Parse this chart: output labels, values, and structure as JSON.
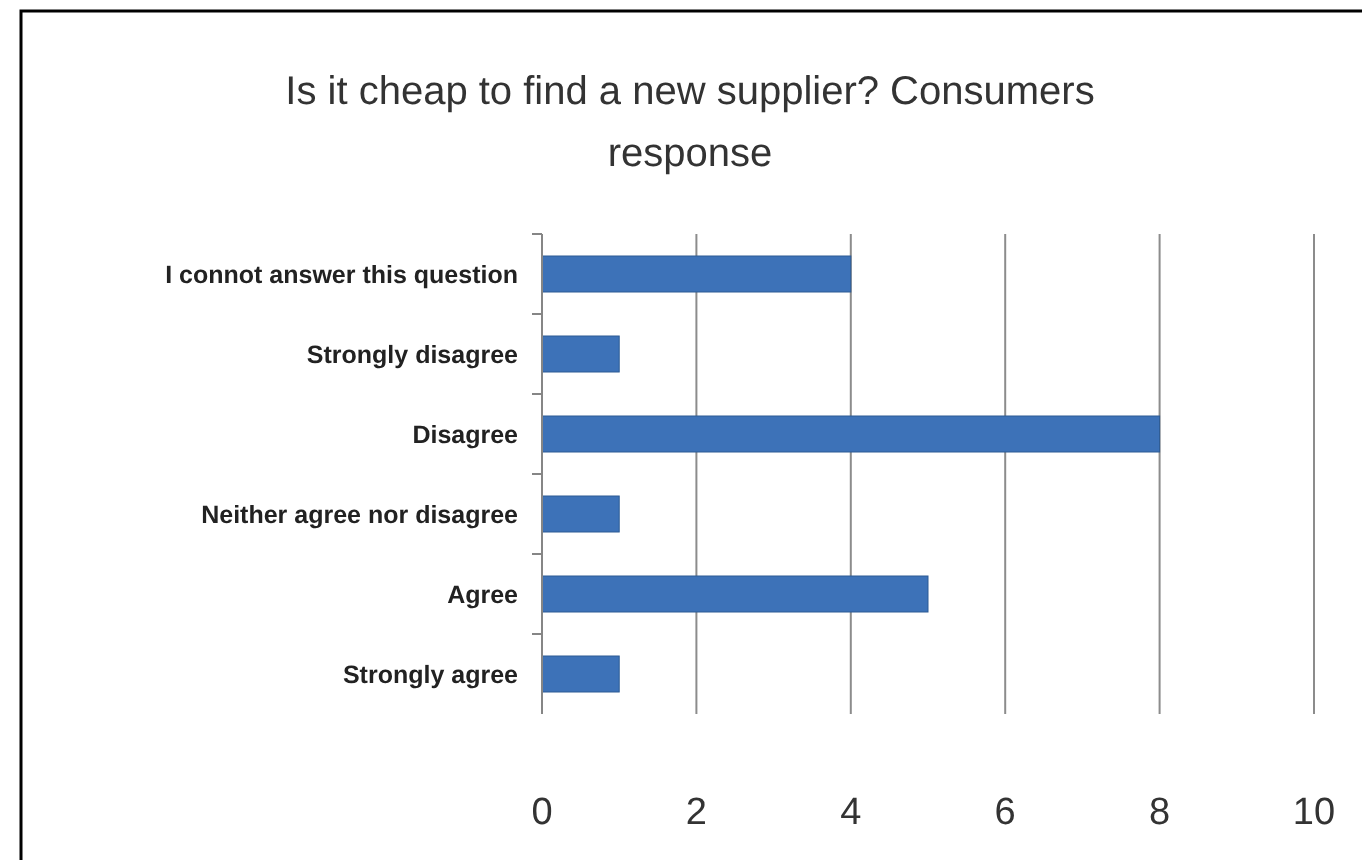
{
  "chart_data": {
    "type": "bar",
    "orientation": "horizontal",
    "title": "Is it cheap to find a new supplier? Consumers response",
    "categories": [
      "I connot answer this question",
      "Strongly disagree",
      "Disagree",
      "Neither agree nor disagree",
      "Agree",
      "Strongly agree"
    ],
    "values": [
      4,
      1,
      8,
      1,
      5,
      1
    ],
    "color": "#3d72b8",
    "xlim": [
      0,
      10
    ],
    "xticks": [
      0,
      2,
      4,
      6,
      8,
      10
    ],
    "grid": "x"
  }
}
